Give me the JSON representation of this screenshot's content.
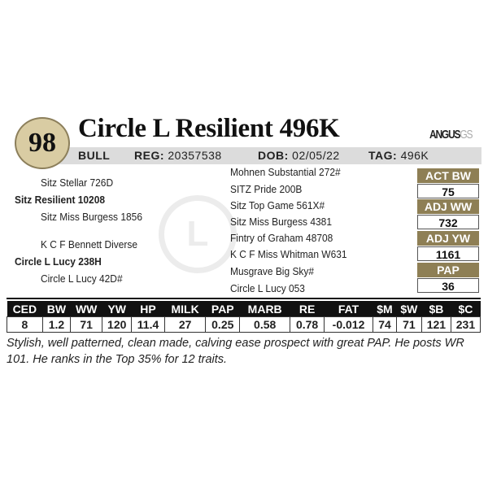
{
  "lot": "98",
  "name": "Circle L Resilient 496K",
  "logo": {
    "main": "ANGUS",
    "sub": "GS"
  },
  "info": {
    "sex": "BULL",
    "reg_label": "REG:",
    "reg": "20357538",
    "dob_label": "DOB:",
    "dob": "02/05/22",
    "tag_label": "TAG:",
    "tag": "496K"
  },
  "watermark": "L",
  "pedigree_left": [
    "Sitz Stellar 726D",
    "Sitz Resilient 10208",
    "Sitz Miss Burgess 1856",
    "K C F Bennett Diverse",
    "Circle L Lucy 238H",
    "Circle L  Lucy 42D#"
  ],
  "pedigree_right": [
    "Mohnen Substantial 272#",
    "SITZ Pride 200B",
    "Sitz Top Game 561X#",
    "Sitz Miss Burgess 4381",
    "Fintry of Graham 48708",
    "K C F Miss Whitman W631",
    "Musgrave Big Sky#",
    "Circle L Lucy 053"
  ],
  "stats": [
    {
      "label": "ACT BW",
      "value": "75"
    },
    {
      "label": "ADJ WW",
      "value": "732"
    },
    {
      "label": "ADJ YW",
      "value": "1161"
    },
    {
      "label": "PAP",
      "value": "36"
    }
  ],
  "epd_headers": [
    "CED",
    "BW",
    "WW",
    "YW",
    "HP",
    "MILK",
    "PAP",
    "MARB",
    "RE",
    "FAT",
    "$M",
    "$W",
    "$B",
    "$C"
  ],
  "epd_values": [
    "8",
    "1.2",
    "71",
    "120",
    "11.4",
    "27",
    "0.25",
    "0.58",
    "0.78",
    "-0.012",
    "74",
    "71",
    "121",
    "231"
  ],
  "comment": "Stylish, well patterned, clean made, calving ease prospect with great PAP.  He posts WR 101.  He ranks in the Top 35% for 12 traits.",
  "colors": {
    "gold": "#8e7f55",
    "lot_circle": "#d9cca3",
    "bar": "#dcdcdc"
  }
}
